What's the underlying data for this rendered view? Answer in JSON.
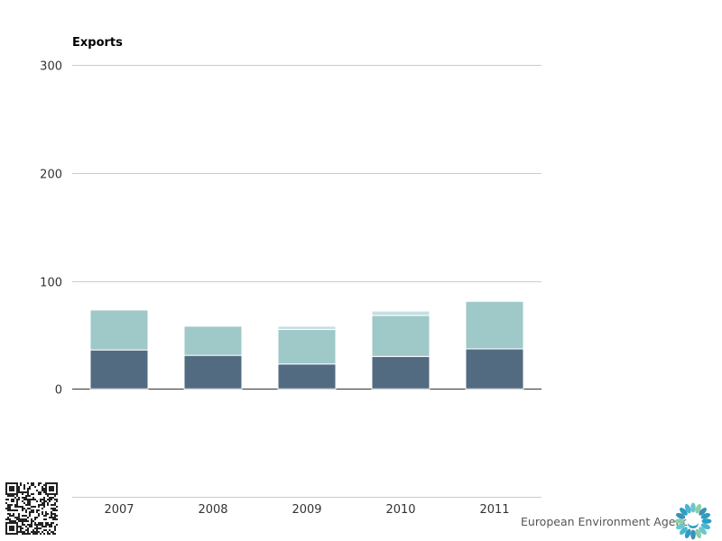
{
  "chart_data": {
    "type": "bar",
    "stacked": true,
    "title": "Exports",
    "categories": [
      "2007",
      "2008",
      "2009",
      "2010",
      "2011"
    ],
    "series": [
      {
        "name": "",
        "color": "#526b80",
        "values": [
          36,
          31,
          23,
          30,
          37
        ]
      },
      {
        "name": "",
        "color": "#9fc8c8",
        "values": [
          37,
          27,
          32,
          38,
          44
        ]
      },
      {
        "name": "",
        "color": "#c5dfe4",
        "values": [
          0,
          0,
          3,
          4,
          0
        ]
      }
    ],
    "yticks": [
      0,
      100,
      200,
      300
    ],
    "ylim": [
      -100,
      300
    ],
    "grid": true
  },
  "footer": {
    "brand": "European Environment Agency",
    "qr_icon": "qr-code-icon",
    "logo_icon": "eea-sun-logo-icon"
  }
}
